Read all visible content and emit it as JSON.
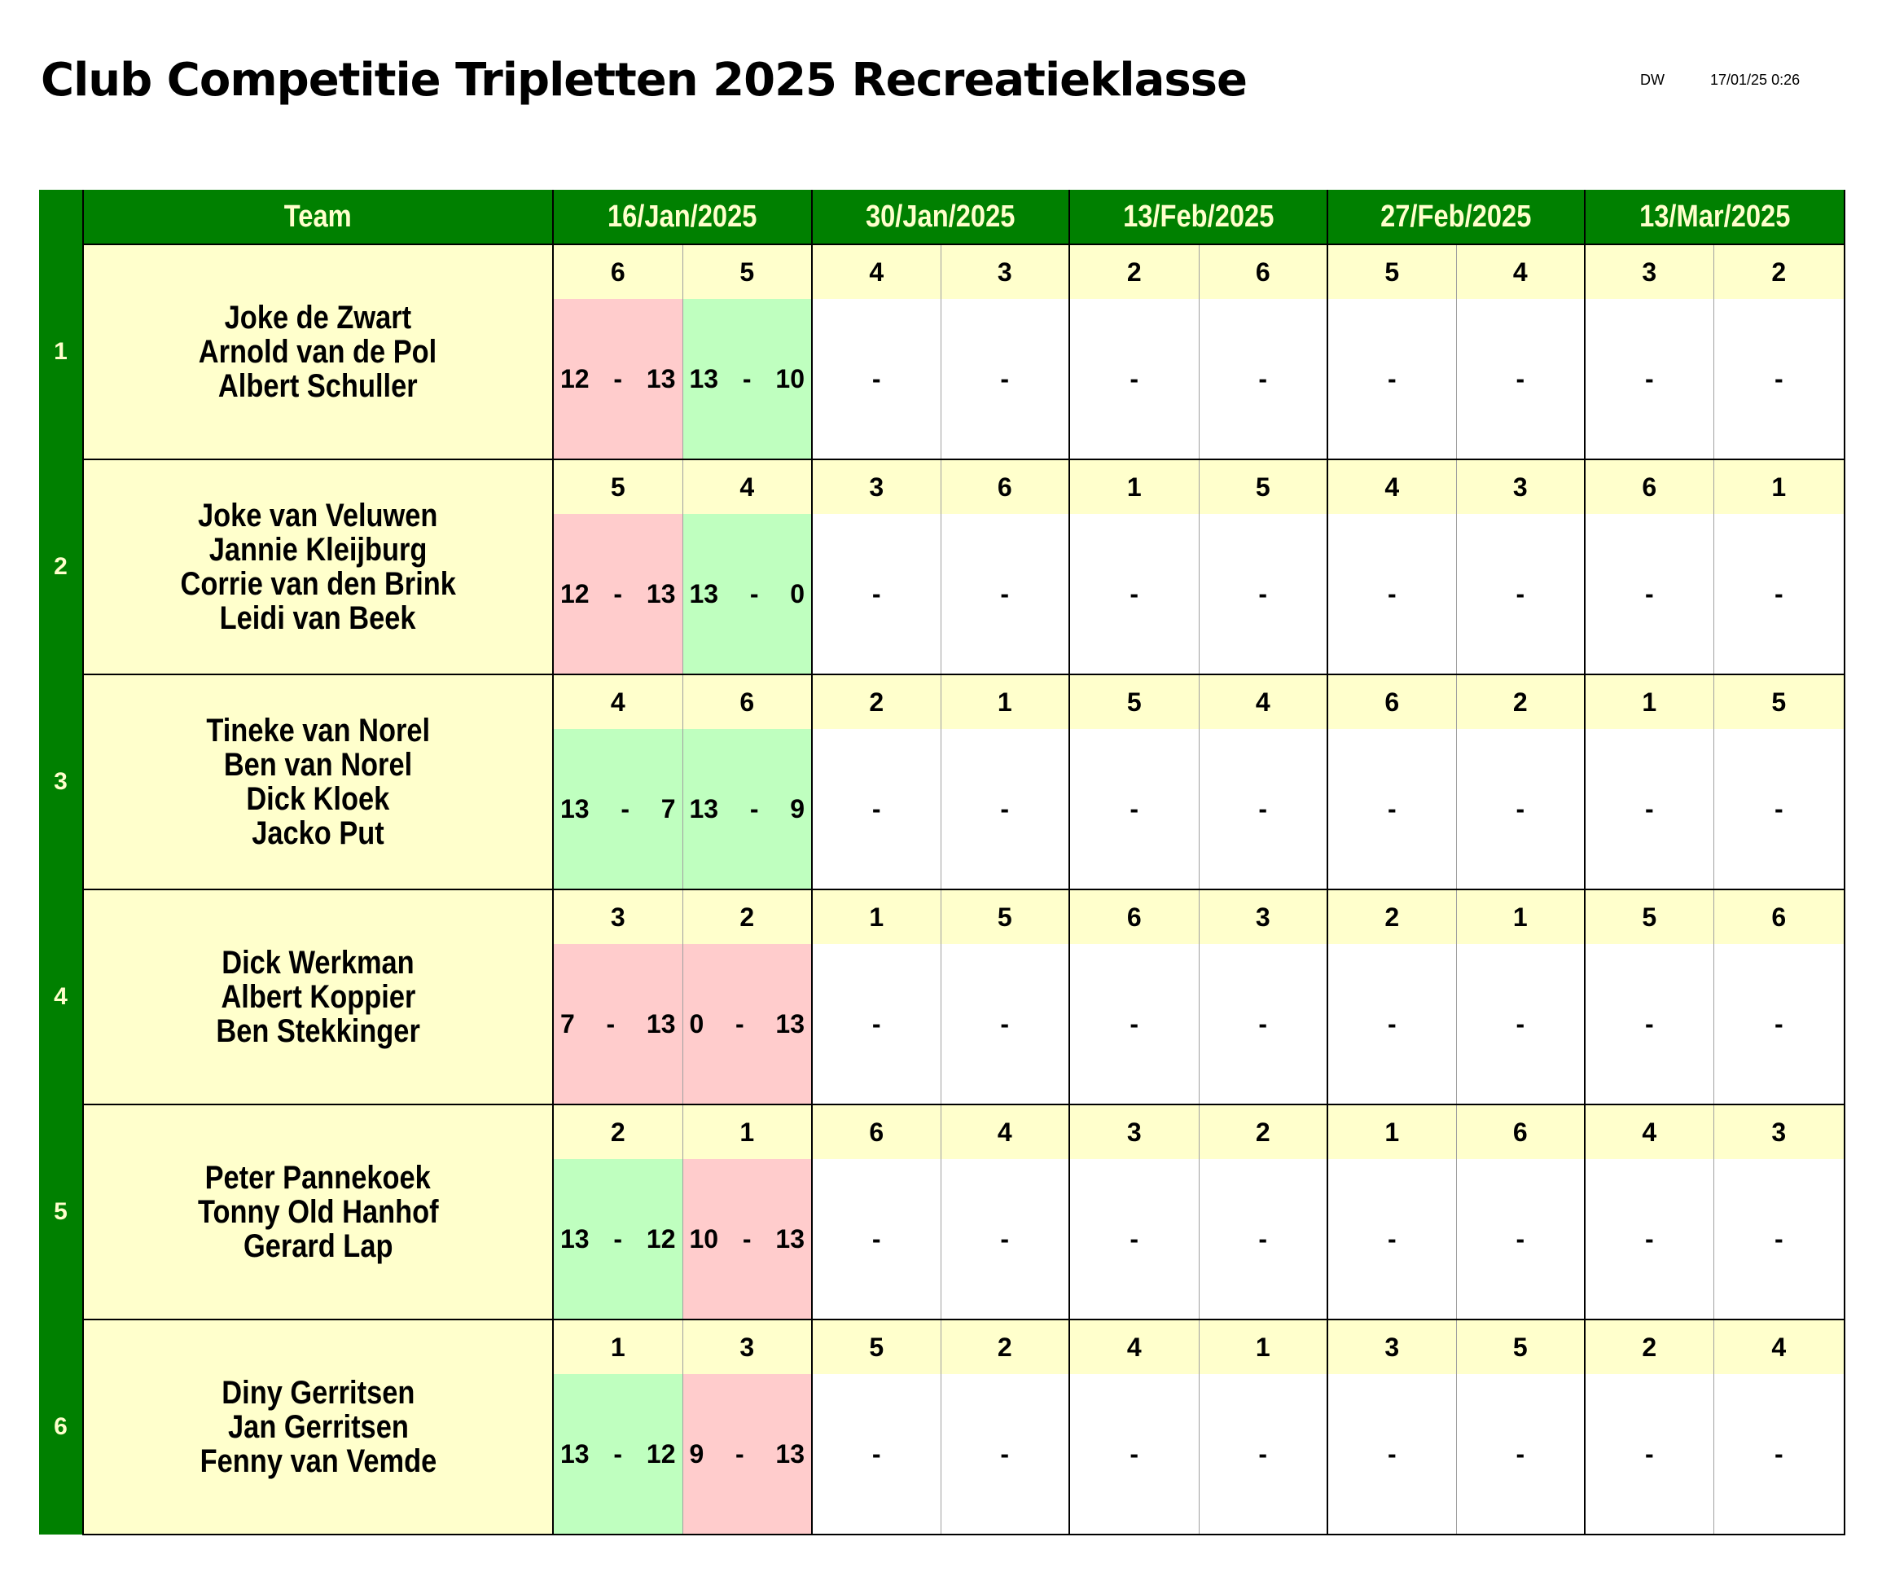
{
  "title": "Club Competitie Tripletten 2025 Recreatieklasse",
  "author": "DW",
  "timestamp": "17/01/25 0:26",
  "header": {
    "team": "Team",
    "dates": [
      "16/Jan/2025",
      "30/Jan/2025",
      "13/Feb/2025",
      "27/Feb/2025",
      "13/Mar/2025"
    ]
  },
  "teams": [
    {
      "num": "1",
      "players": [
        "Joke de Zwart",
        "Arnold van de Pol",
        "Albert Schuller"
      ],
      "opponents": [
        "6",
        "5",
        "4",
        "3",
        "2",
        "6",
        "5",
        "4",
        "3",
        "2"
      ],
      "scores": [
        [
          "12",
          "-",
          "13"
        ],
        [
          "13",
          "-",
          "10"
        ],
        [
          "",
          "-",
          ""
        ],
        [
          "",
          "-",
          ""
        ],
        [
          "",
          "-",
          ""
        ],
        [
          "",
          "-",
          ""
        ],
        [
          "",
          "-",
          ""
        ],
        [
          "",
          "-",
          ""
        ],
        [
          "",
          "-",
          ""
        ],
        [
          "",
          "-",
          ""
        ]
      ],
      "results": [
        "loss",
        "win",
        "",
        "",
        "",
        "",
        "",
        "",
        "",
        ""
      ]
    },
    {
      "num": "2",
      "players": [
        "Joke van Veluwen",
        "Jannie Kleijburg",
        "Corrie van den Brink",
        "Leidi van Beek"
      ],
      "opponents": [
        "5",
        "4",
        "3",
        "6",
        "1",
        "5",
        "4",
        "3",
        "6",
        "1"
      ],
      "scores": [
        [
          "12",
          "-",
          "13"
        ],
        [
          "13",
          "-",
          "0"
        ],
        [
          "",
          "-",
          ""
        ],
        [
          "",
          "-",
          ""
        ],
        [
          "",
          "-",
          ""
        ],
        [
          "",
          "-",
          ""
        ],
        [
          "",
          "-",
          ""
        ],
        [
          "",
          "-",
          ""
        ],
        [
          "",
          "-",
          ""
        ],
        [
          "",
          "-",
          ""
        ]
      ],
      "results": [
        "loss",
        "win",
        "",
        "",
        "",
        "",
        "",
        "",
        "",
        ""
      ]
    },
    {
      "num": "3",
      "players": [
        "Tineke van Norel",
        "Ben van Norel",
        "Dick Kloek",
        "Jacko Put"
      ],
      "opponents": [
        "4",
        "6",
        "2",
        "1",
        "5",
        "4",
        "6",
        "2",
        "1",
        "5"
      ],
      "scores": [
        [
          "13",
          "-",
          "7"
        ],
        [
          "13",
          "-",
          "9"
        ],
        [
          "",
          "-",
          ""
        ],
        [
          "",
          "-",
          ""
        ],
        [
          "",
          "-",
          ""
        ],
        [
          "",
          "-",
          ""
        ],
        [
          "",
          "-",
          ""
        ],
        [
          "",
          "-",
          ""
        ],
        [
          "",
          "-",
          ""
        ],
        [
          "",
          "-",
          ""
        ]
      ],
      "results": [
        "win",
        "win",
        "",
        "",
        "",
        "",
        "",
        "",
        "",
        ""
      ]
    },
    {
      "num": "4",
      "players": [
        "Dick Werkman",
        "Albert Koppier",
        "Ben Stekkinger"
      ],
      "opponents": [
        "3",
        "2",
        "1",
        "5",
        "6",
        "3",
        "2",
        "1",
        "5",
        "6"
      ],
      "scores": [
        [
          "7",
          "-",
          "13"
        ],
        [
          "0",
          "-",
          "13"
        ],
        [
          "",
          "-",
          ""
        ],
        [
          "",
          "-",
          ""
        ],
        [
          "",
          "-",
          ""
        ],
        [
          "",
          "-",
          ""
        ],
        [
          "",
          "-",
          ""
        ],
        [
          "",
          "-",
          ""
        ],
        [
          "",
          "-",
          ""
        ],
        [
          "",
          "-",
          ""
        ]
      ],
      "results": [
        "loss",
        "loss",
        "",
        "",
        "",
        "",
        "",
        "",
        "",
        ""
      ]
    },
    {
      "num": "5",
      "players": [
        "Peter Pannekoek",
        "Tonny Old Hanhof",
        "Gerard Lap"
      ],
      "opponents": [
        "2",
        "1",
        "6",
        "4",
        "3",
        "2",
        "1",
        "6",
        "4",
        "3"
      ],
      "scores": [
        [
          "13",
          "-",
          "12"
        ],
        [
          "10",
          "-",
          "13"
        ],
        [
          "",
          "-",
          ""
        ],
        [
          "",
          "-",
          ""
        ],
        [
          "",
          "-",
          ""
        ],
        [
          "",
          "-",
          ""
        ],
        [
          "",
          "-",
          ""
        ],
        [
          "",
          "-",
          ""
        ],
        [
          "",
          "-",
          ""
        ],
        [
          "",
          "-",
          ""
        ]
      ],
      "results": [
        "win",
        "loss",
        "",
        "",
        "",
        "",
        "",
        "",
        "",
        ""
      ]
    },
    {
      "num": "6",
      "players": [
        "Diny Gerritsen",
        "Jan Gerritsen",
        "Fenny van Vemde"
      ],
      "opponents": [
        "1",
        "3",
        "5",
        "2",
        "4",
        "1",
        "3",
        "5",
        "2",
        "4"
      ],
      "scores": [
        [
          "13",
          "-",
          "12"
        ],
        [
          "9",
          "-",
          "13"
        ],
        [
          "",
          "-",
          ""
        ],
        [
          "",
          "-",
          ""
        ],
        [
          "",
          "-",
          ""
        ],
        [
          "",
          "-",
          ""
        ],
        [
          "",
          "-",
          ""
        ],
        [
          "",
          "-",
          ""
        ],
        [
          "",
          "-",
          ""
        ],
        [
          "",
          "-",
          ""
        ]
      ],
      "results": [
        "win",
        "loss",
        "",
        "",
        "",
        "",
        "",
        "",
        "",
        ""
      ]
    }
  ],
  "colors": {
    "header_green": "#008000",
    "cream": "#ffffcc",
    "win": "#bfffbf",
    "loss": "#ffcccc"
  }
}
